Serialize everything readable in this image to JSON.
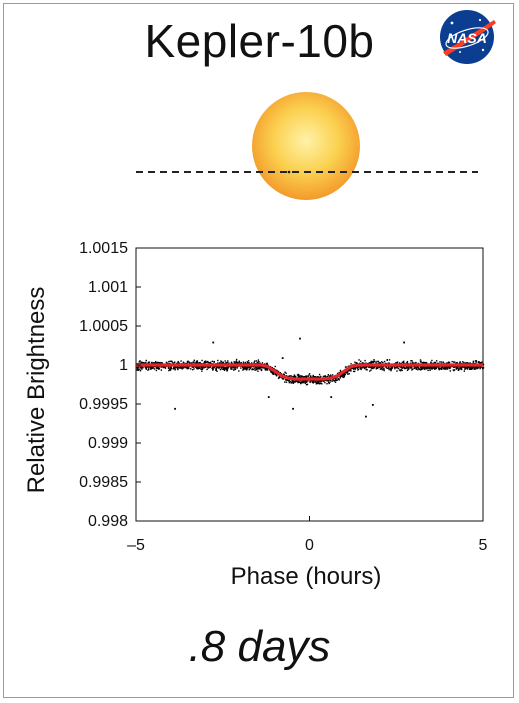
{
  "title": "Kepler-10b",
  "logo": {
    "text": "NASA",
    "colors": {
      "blue": "#0b3d91",
      "red": "#fc3d21"
    }
  },
  "footer": {
    "period_text": ".8 days"
  },
  "illustration": {
    "star_color": "#f7b23b",
    "transit_line": "dashed"
  },
  "colors": {
    "model": "#e3262b",
    "points": "#000000",
    "frame": "#9a9a9a"
  },
  "chart_data": {
    "type": "scatter",
    "xlabel": "Phase (hours)",
    "ylabel": "Relative Brightness",
    "xlim": [
      -5,
      5
    ],
    "ylim": [
      0.998,
      1.0015
    ],
    "x_ticks": [
      -5,
      0,
      5
    ],
    "x_tick_labels": [
      "–5",
      "0",
      "5"
    ],
    "y_ticks": [
      0.998,
      0.9985,
      0.999,
      0.9995,
      1,
      1.0005,
      1.001,
      1.0015
    ],
    "y_tick_labels": [
      "0.998",
      "0.9985",
      "0.999",
      "0.9995",
      "1",
      "1.0005",
      "1.001",
      "1.0015"
    ],
    "grid": false,
    "series": [
      {
        "kind": "model",
        "x": [
          -5,
          -1.4,
          -1.2,
          -1.0,
          -0.8,
          -0.6,
          -0.4,
          0,
          0.4,
          0.6,
          0.8,
          1.0,
          1.2,
          1.4,
          5
        ],
        "y": [
          1.0,
          1.0,
          0.99998,
          0.99992,
          0.99986,
          0.99983,
          0.99982,
          0.99982,
          0.99982,
          0.99983,
          0.99986,
          0.99992,
          0.99998,
          1.0,
          1.0
        ]
      },
      {
        "kind": "observations",
        "approx_scatter": 6e-05,
        "outliers": [
          {
            "x": -3.9,
            "y": 0.99945
          },
          {
            "x": -2.8,
            "y": 1.0003
          },
          {
            "x": -0.8,
            "y": 1.0001
          },
          {
            "x": -1.2,
            "y": 0.9996
          },
          {
            "x": -0.3,
            "y": 1.00035
          },
          {
            "x": -0.5,
            "y": 0.99945
          },
          {
            "x": 0.6,
            "y": 0.9996
          },
          {
            "x": 1.6,
            "y": 0.99935
          },
          {
            "x": 2.7,
            "y": 1.0003
          },
          {
            "x": 1.8,
            "y": 0.9995
          }
        ]
      }
    ]
  }
}
